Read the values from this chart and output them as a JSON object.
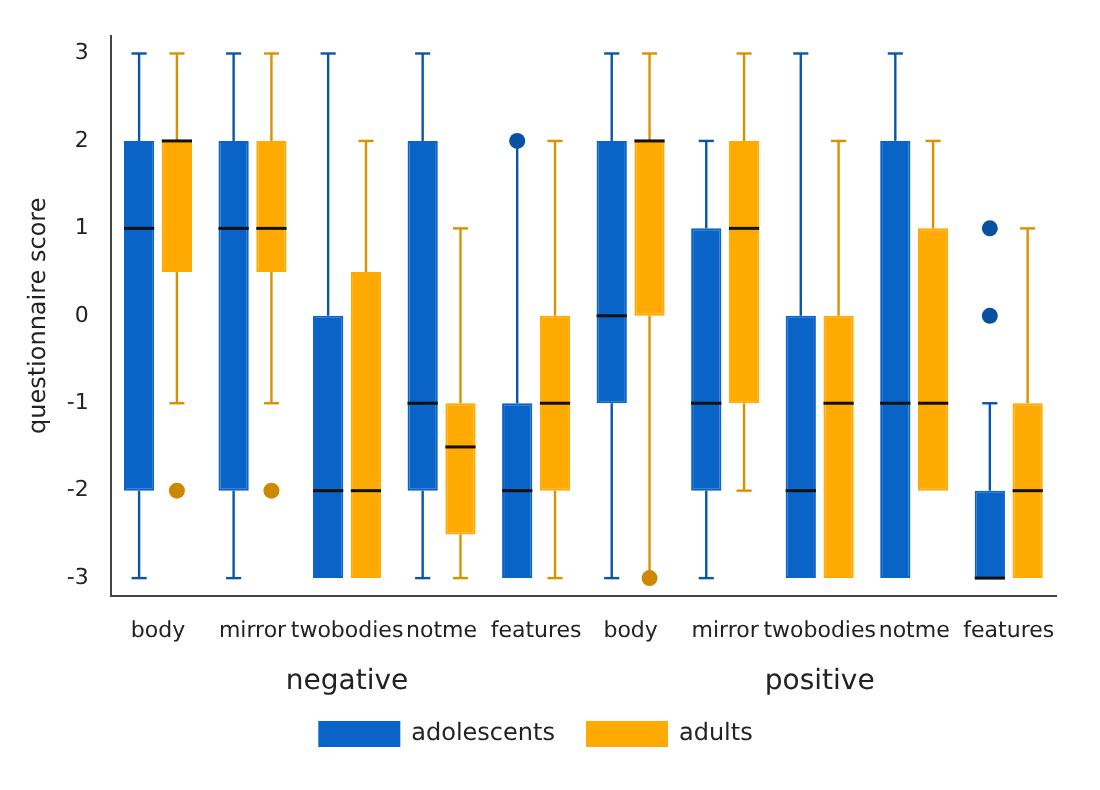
{
  "chart_data": {
    "type": "box",
    "ylabel": "questionnaire score",
    "categories": [
      "body",
      "mirror",
      "twobodies",
      "notme",
      "features",
      "body",
      "mirror",
      "twobodies",
      "notme",
      "features"
    ],
    "annotations": [
      "negative",
      "positive"
    ],
    "ylim": [
      -3.2,
      3.2
    ],
    "yticks": [
      -3,
      -2,
      -1,
      0,
      1,
      2,
      3
    ],
    "grid": false,
    "legend": "bottom",
    "series": [
      {
        "name": "adolescents",
        "color": "#0a64c8",
        "boxes": [
          {
            "low": -3,
            "q1": -2,
            "median": 1,
            "q3": 2,
            "high": 3
          },
          {
            "low": -3,
            "q1": -2,
            "median": 1,
            "q3": 2,
            "high": 3
          },
          {
            "low": -3,
            "q1": -3,
            "median": -2,
            "q3": 0,
            "high": 3
          },
          {
            "low": -3,
            "q1": -2,
            "median": -1,
            "q3": 2,
            "high": 3
          },
          {
            "low": -3,
            "q1": -3,
            "median": -2,
            "q3": -1,
            "high": 2,
            "outliers": [
              2
            ]
          },
          {
            "low": -3,
            "q1": -1,
            "median": 0,
            "q3": 2,
            "high": 3
          },
          {
            "low": -3,
            "q1": -2,
            "median": -1,
            "q3": 1,
            "high": 2
          },
          {
            "low": -3,
            "q1": -3,
            "median": -2,
            "q3": 0,
            "high": 3
          },
          {
            "low": -3,
            "q1": -3,
            "median": -1,
            "q3": 2,
            "high": 3
          },
          {
            "low": -3,
            "q1": -3,
            "median": -3,
            "q3": -2,
            "high": -1,
            "outliers": [
              0,
              1
            ]
          }
        ]
      },
      {
        "name": "adults",
        "color": "#ffaa00",
        "boxes": [
          {
            "low": -1,
            "q1": 0.5,
            "median": 2,
            "q3": 2,
            "high": 3,
            "outliers": [
              -2
            ]
          },
          {
            "low": -1,
            "q1": 0.5,
            "median": 1,
            "q3": 2,
            "high": 3,
            "outliers": [
              -2
            ]
          },
          {
            "low": -3,
            "q1": -3,
            "median": -2,
            "q3": 0.5,
            "high": 2
          },
          {
            "low": -3,
            "q1": -2.5,
            "median": -1.5,
            "q3": -1,
            "high": 1
          },
          {
            "low": -3,
            "q1": -2,
            "median": -1,
            "q3": 0,
            "high": 2
          },
          {
            "low": -3,
            "q1": 0,
            "median": 2,
            "q3": 2,
            "high": 3,
            "outliers": [
              -3
            ]
          },
          {
            "low": -2,
            "q1": -1,
            "median": 1,
            "q3": 2,
            "high": 3
          },
          {
            "low": -3,
            "q1": -3,
            "median": -1,
            "q3": 0,
            "high": 2
          },
          {
            "low": -2,
            "q1": -2,
            "median": -1,
            "q3": 1,
            "high": 2
          },
          {
            "low": -3,
            "q1": -3,
            "median": -2,
            "q3": -1,
            "high": 1
          }
        ]
      }
    ]
  }
}
